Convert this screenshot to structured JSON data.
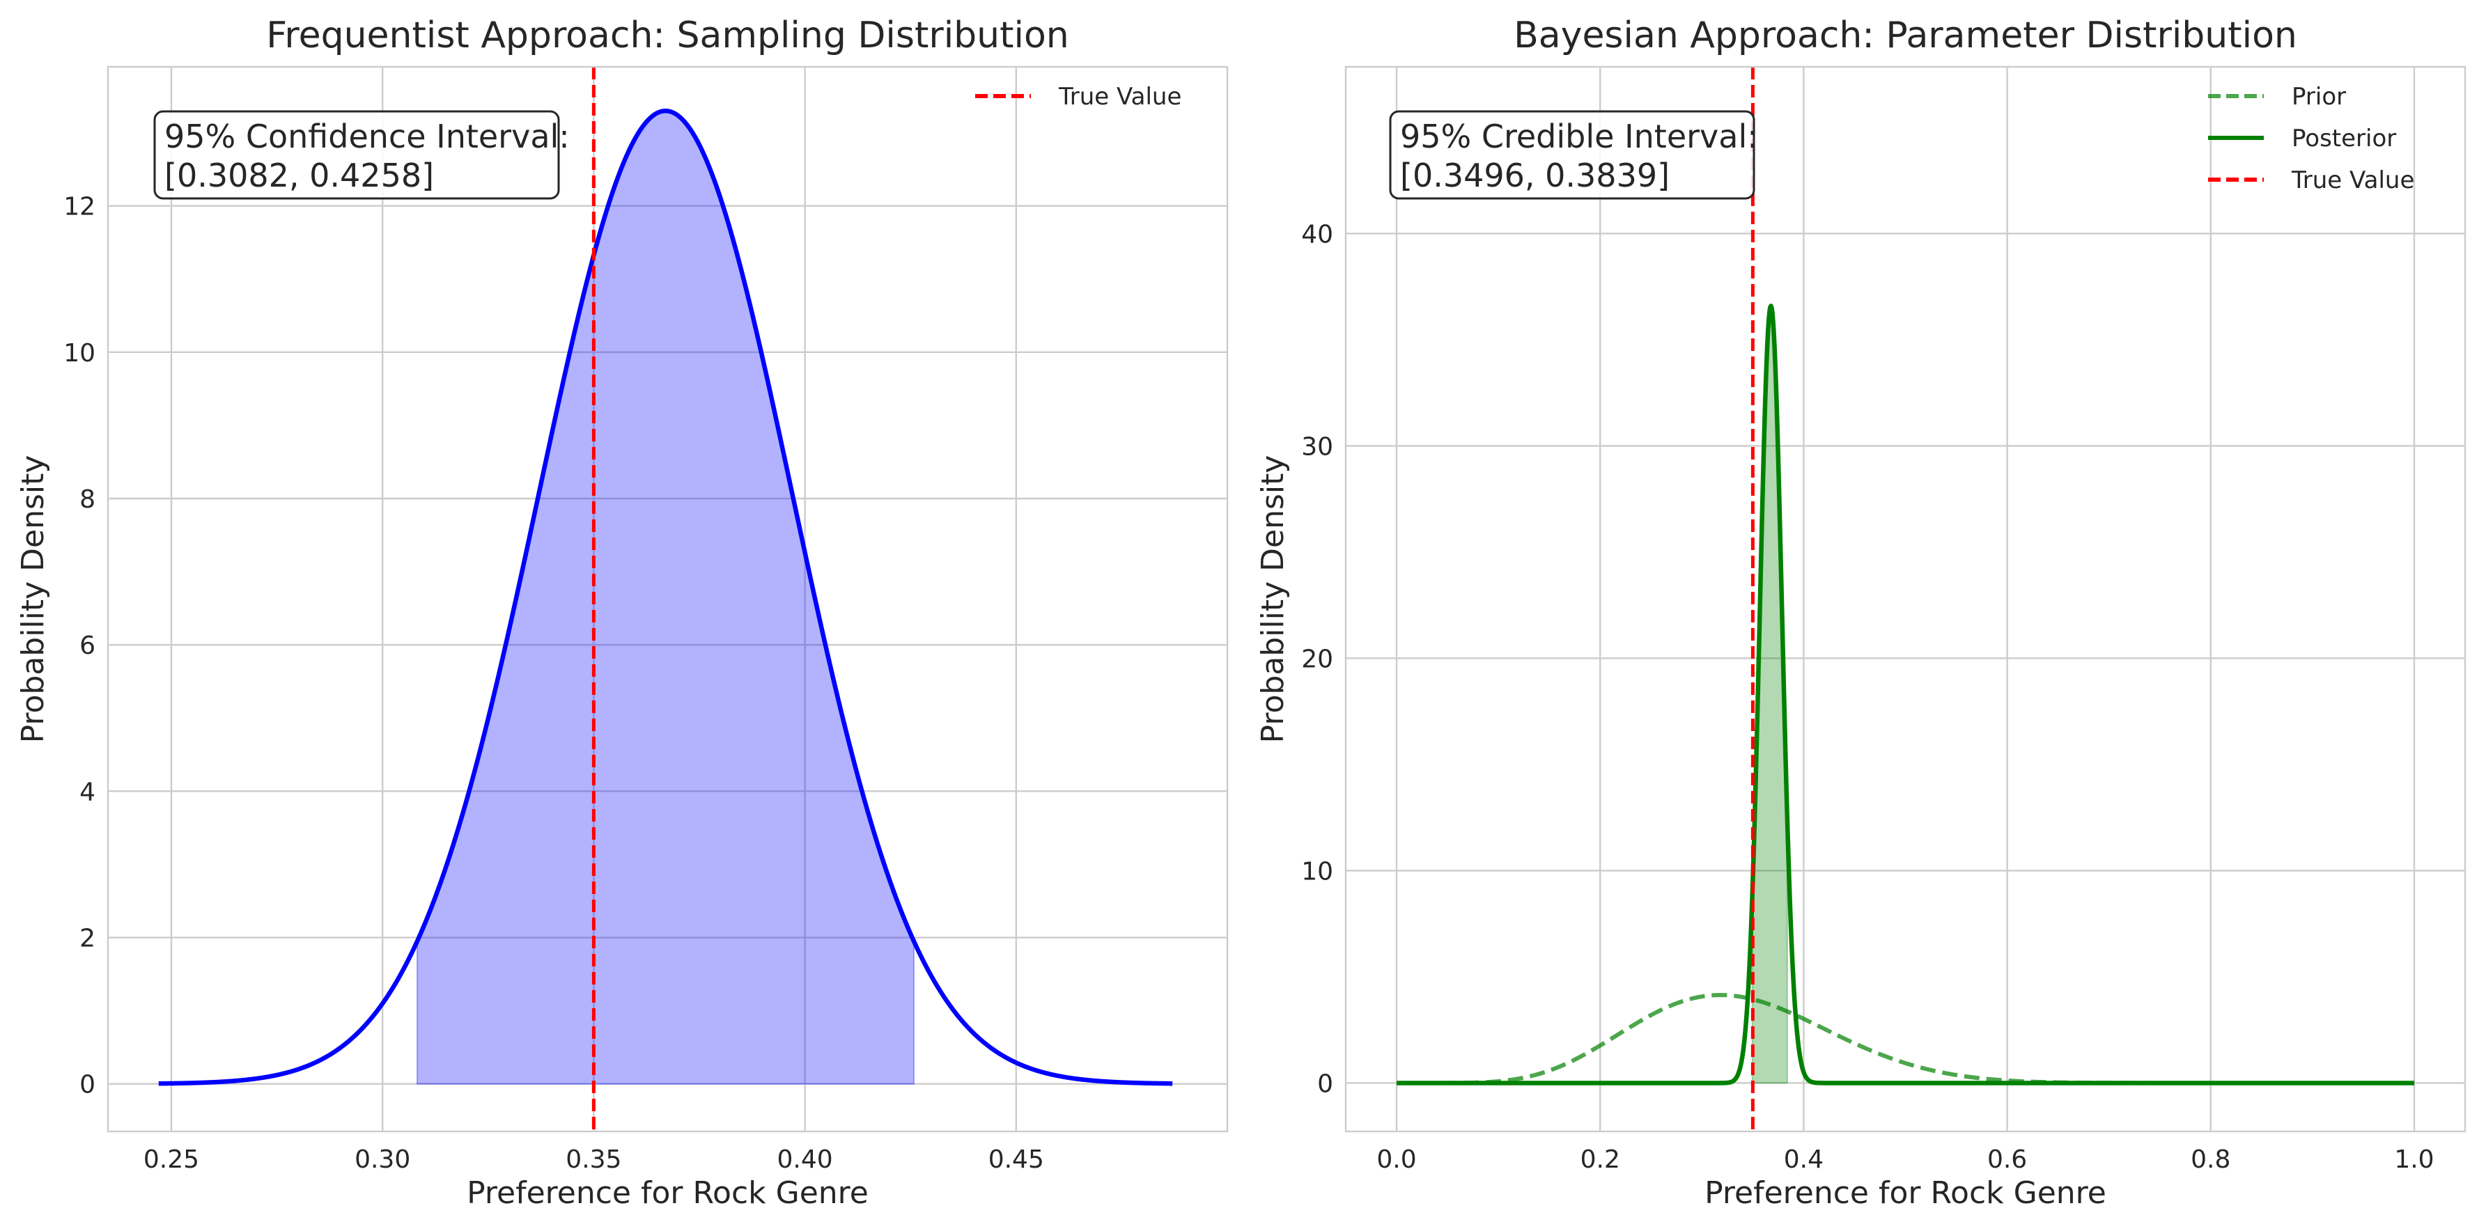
{
  "chart_data": [
    {
      "type": "area",
      "title": "Frequentist Approach: Sampling Distribution",
      "xlabel": "Preference for Rock Genre",
      "ylabel": "Probability Density",
      "xlim": [
        0.235,
        0.5
      ],
      "ylim": [
        -0.65,
        13.9
      ],
      "xticks": [
        0.25,
        0.3,
        0.35,
        0.4,
        0.45
      ],
      "xtick_labels": [
        "0.25",
        "0.30",
        "0.35",
        "0.40",
        "0.45"
      ],
      "yticks": [
        0,
        2,
        4,
        6,
        8,
        10,
        12
      ],
      "ytick_labels": [
        "0",
        "2",
        "4",
        "6",
        "8",
        "10",
        "12"
      ],
      "grid": true,
      "legend_position": "top-right",
      "series": [
        {
          "name": "",
          "kind": "normal_pdf",
          "mean": 0.367,
          "sd": 0.03,
          "x_range": [
            0.247,
            0.487
          ],
          "color": "#0000ff"
        }
      ],
      "shaded_interval": {
        "from": 0.3082,
        "to": 0.4258,
        "color": "#0000ff",
        "opacity": 0.3
      },
      "reference_line": {
        "name": "True Value",
        "x": 0.35,
        "color": "#ff0000",
        "dashed": true
      },
      "annotation": {
        "line1": "95% Confidence Interval:",
        "line2": "[0.3082, 0.4258]"
      }
    },
    {
      "type": "line",
      "title": "Bayesian Approach: Parameter Distribution",
      "xlabel": "Preference for Rock Genre",
      "ylabel": "Probability Density",
      "xlim": [
        -0.05,
        1.05
      ],
      "ylim": [
        -2.28,
        47.85
      ],
      "xticks": [
        0.0,
        0.2,
        0.4,
        0.6,
        0.8,
        1.0
      ],
      "xtick_labels": [
        "0.0",
        "0.2",
        "0.4",
        "0.6",
        "0.8",
        "1.0"
      ],
      "yticks": [
        0,
        10,
        20,
        30,
        40
      ],
      "ytick_labels": [
        "0",
        "10",
        "20",
        "30",
        "40"
      ],
      "grid": true,
      "legend_position": "top-right",
      "series": [
        {
          "name": "Prior",
          "kind": "beta_pdf",
          "alpha": 8,
          "beta": 16,
          "color": "#008000",
          "dashed": true,
          "opacity": 0.7
        },
        {
          "name": "Posterior",
          "kind": "beta_pdf",
          "alpha": 720,
          "beta": 1237,
          "color": "#008000",
          "dashed": false
        }
      ],
      "shaded_interval": {
        "from": 0.3496,
        "to": 0.3839,
        "color": "#008000",
        "opacity": 0.3
      },
      "reference_line": {
        "name": "True Value",
        "x": 0.35,
        "color": "#ff0000",
        "dashed": true
      },
      "annotation": {
        "line1": "95% Credible Interval:",
        "line2": "[0.3496, 0.3839]"
      }
    }
  ]
}
